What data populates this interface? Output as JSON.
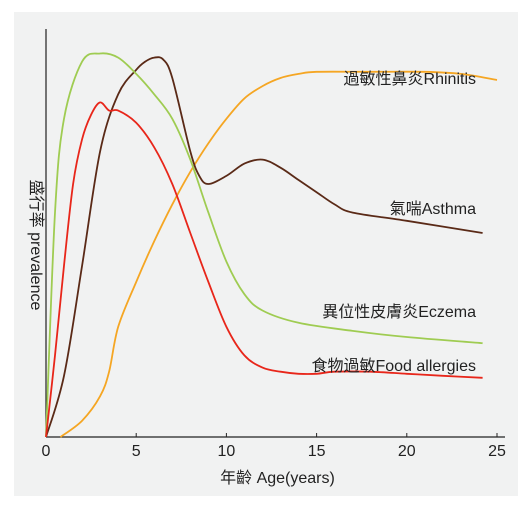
{
  "chart_data": {
    "type": "line",
    "title": "",
    "xlabel": "年齡 Age(years)",
    "ylabel": "盛行率 prevalence",
    "xlim": [
      0,
      25
    ],
    "ylim": [
      0,
      1
    ],
    "x_ticks": [
      "0",
      "5",
      "10",
      "15",
      "20",
      "25"
    ],
    "y_ticks": [],
    "grid": false,
    "series": [
      {
        "name": "過敏性鼻炎Rhinitis",
        "color": "#f5a623",
        "x": [
          0.8,
          2,
          3,
          3.5,
          4,
          5,
          6,
          7,
          8,
          9,
          10,
          11,
          12,
          13,
          14,
          15,
          18,
          21,
          23,
          25
        ],
        "y": [
          0,
          0.04,
          0.1,
          0.16,
          0.27,
          0.38,
          0.48,
          0.57,
          0.65,
          0.72,
          0.78,
          0.83,
          0.86,
          0.88,
          0.89,
          0.895,
          0.895,
          0.895,
          0.89,
          0.875
        ]
      },
      {
        "name": "氣喘Asthma",
        "color": "#5a2a17",
        "x": [
          0,
          1,
          2,
          3,
          4,
          5,
          5.5,
          6,
          6.5,
          7,
          8,
          8.5,
          9,
          10,
          11,
          12,
          13,
          14,
          15,
          16,
          17,
          20,
          24.2
        ],
        "y": [
          0,
          0.15,
          0.42,
          0.7,
          0.84,
          0.9,
          0.92,
          0.93,
          0.925,
          0.88,
          0.7,
          0.64,
          0.62,
          0.64,
          0.67,
          0.68,
          0.66,
          0.63,
          0.6,
          0.57,
          0.55,
          0.53,
          0.5
        ]
      },
      {
        "name": "異位性皮膚炎Eczema",
        "color": "#9fcc52",
        "x": [
          0,
          0.5,
          1,
          2,
          3,
          4,
          5,
          6,
          7,
          8,
          9,
          10,
          11,
          12,
          14,
          17,
          20,
          24.2
        ],
        "y": [
          0,
          0.55,
          0.78,
          0.92,
          0.94,
          0.93,
          0.89,
          0.84,
          0.78,
          0.68,
          0.55,
          0.43,
          0.35,
          0.31,
          0.28,
          0.26,
          0.245,
          0.23
        ]
      },
      {
        "name": "食物過敏Food allergies",
        "color": "#e8261a",
        "x": [
          0,
          0.5,
          1,
          1.5,
          2,
          2.5,
          3,
          3.5,
          4,
          5,
          6,
          7,
          8,
          9,
          10,
          11,
          12,
          13,
          14,
          15,
          16,
          18,
          20,
          22,
          24.2
        ],
        "y": [
          0,
          0.2,
          0.42,
          0.62,
          0.73,
          0.79,
          0.82,
          0.8,
          0.8,
          0.77,
          0.71,
          0.62,
          0.5,
          0.38,
          0.27,
          0.2,
          0.17,
          0.16,
          0.155,
          0.155,
          0.16,
          0.16,
          0.155,
          0.15,
          0.145
        ]
      }
    ]
  }
}
